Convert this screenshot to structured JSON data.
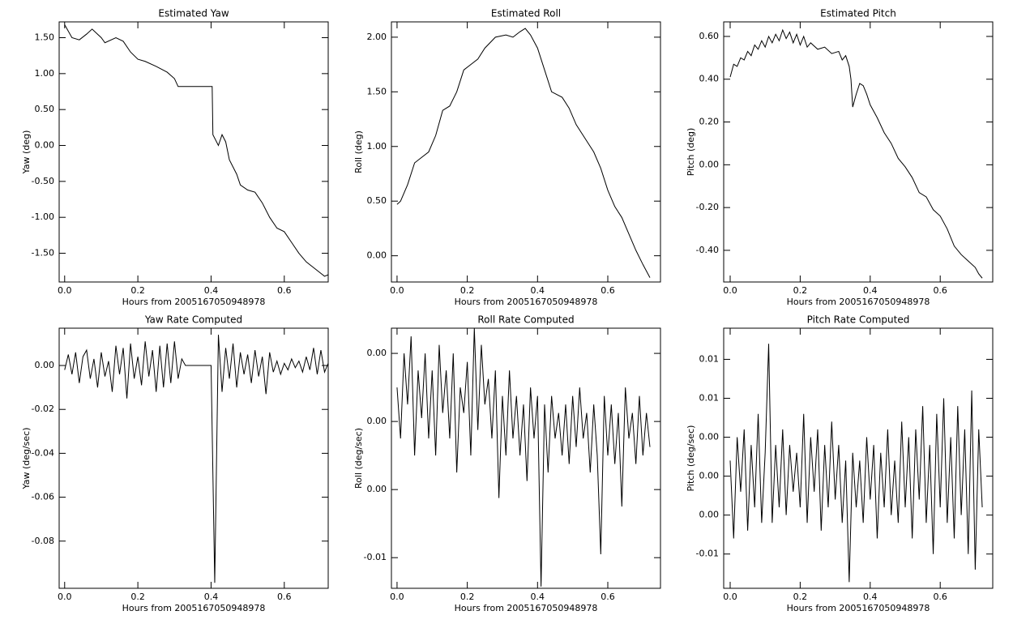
{
  "chart_data": [
    {
      "type": "line",
      "title": "Estimated Yaw",
      "xlabel": "Hours from 2005167050948978",
      "ylabel": "Yaw (deg)",
      "color": "#000000",
      "xlim": [
        -0.015,
        0.72
      ],
      "ylim": [
        -1.9,
        1.72
      ],
      "xticks": [
        {
          "value": 0,
          "label": "0.0"
        },
        0.2,
        0.4,
        0.6
      ],
      "yticks": [
        {
          "value": 1.5,
          "label": "1.50"
        },
        {
          "value": 1,
          "label": "1.00"
        },
        {
          "value": 0.5,
          "label": "0.50"
        },
        {
          "value": 0,
          "label": "0.00"
        },
        {
          "value": -0.5,
          "label": "-0.50"
        },
        {
          "value": -1,
          "label": "-1.00"
        },
        {
          "value": -1.5,
          "label": "-1.50"
        }
      ],
      "x": [
        0,
        0.02,
        0.04,
        0.06,
        0.075,
        0.1,
        0.11,
        0.14,
        0.16,
        0.18,
        0.2,
        0.22,
        0.25,
        0.28,
        0.3,
        0.31,
        0.4,
        0.403,
        0.405,
        0.42,
        0.43,
        0.44,
        0.45,
        0.47,
        0.48,
        0.5,
        0.52,
        0.54,
        0.56,
        0.58,
        0.6,
        0.62,
        0.64,
        0.66,
        0.68,
        0.7,
        0.71,
        0.72
      ],
      "values": [
        1.68,
        1.5,
        1.47,
        1.55,
        1.62,
        1.5,
        1.43,
        1.5,
        1.45,
        1.3,
        1.2,
        1.17,
        1.1,
        1.02,
        0.93,
        0.82,
        0.82,
        0.82,
        0.15,
        0.0,
        0.15,
        0.05,
        -0.2,
        -0.4,
        -0.55,
        -0.62,
        -0.65,
        -0.8,
        -1.0,
        -1.15,
        -1.2,
        -1.35,
        -1.5,
        -1.62,
        -1.7,
        -1.78,
        -1.82,
        -1.8
      ]
    },
    {
      "type": "line",
      "title": "Estimated Roll",
      "xlabel": "Hours from 2005167050948978",
      "ylabel": "Roll (deg)",
      "color": "#000000",
      "xlim": [
        -0.016,
        0.75
      ],
      "ylim": [
        -0.24,
        2.14
      ],
      "xticks": [
        {
          "value": 0,
          "label": "0.0"
        },
        0.2,
        0.4,
        0.6
      ],
      "yticks": [
        {
          "value": 0,
          "label": "0.00"
        },
        {
          "value": 0.5,
          "label": "0.50"
        },
        {
          "value": 1,
          "label": "1.00"
        },
        {
          "value": 1.5,
          "label": "1.50"
        },
        {
          "value": 2,
          "label": "2.00"
        }
      ],
      "x": [
        0,
        0.01,
        0.03,
        0.05,
        0.07,
        0.09,
        0.11,
        0.13,
        0.15,
        0.17,
        0.19,
        0.21,
        0.23,
        0.25,
        0.28,
        0.31,
        0.33,
        0.35,
        0.365,
        0.38,
        0.4,
        0.42,
        0.44,
        0.47,
        0.49,
        0.51,
        0.54,
        0.56,
        0.58,
        0.6,
        0.62,
        0.64,
        0.66,
        0.68,
        0.7,
        0.72
      ],
      "values": [
        0.47,
        0.5,
        0.65,
        0.85,
        0.9,
        0.95,
        1.1,
        1.33,
        1.37,
        1.5,
        1.7,
        1.75,
        1.8,
        1.9,
        2.0,
        2.02,
        2.0,
        2.05,
        2.08,
        2.02,
        1.9,
        1.7,
        1.5,
        1.45,
        1.35,
        1.2,
        1.05,
        0.95,
        0.8,
        0.6,
        0.45,
        0.35,
        0.2,
        0.05,
        -0.08,
        -0.2
      ]
    },
    {
      "type": "line",
      "title": "Estimated Pitch",
      "xlabel": "Hours from 2005167050948978",
      "ylabel": "Pitch (deg)",
      "color": "#000000",
      "xlim": [
        -0.0185,
        0.75
      ],
      "ylim": [
        -0.548,
        0.668
      ],
      "xticks": [
        {
          "value": 0,
          "label": "0.0"
        },
        0.2,
        0.4,
        0.6
      ],
      "yticks": [
        {
          "value": -0.4,
          "label": "-0.40"
        },
        {
          "value": -0.2,
          "label": "-0.20"
        },
        {
          "value": 0,
          "label": "0.00"
        },
        {
          "value": 0.2,
          "label": "0.20"
        },
        {
          "value": 0.4,
          "label": "0.40"
        },
        {
          "value": 0.6,
          "label": "0.60"
        }
      ],
      "x": [
        0,
        0.01,
        0.02,
        0.03,
        0.04,
        0.05,
        0.06,
        0.07,
        0.08,
        0.09,
        0.1,
        0.11,
        0.12,
        0.13,
        0.14,
        0.15,
        0.16,
        0.17,
        0.18,
        0.19,
        0.2,
        0.21,
        0.22,
        0.23,
        0.25,
        0.27,
        0.29,
        0.31,
        0.32,
        0.33,
        0.34,
        0.345,
        0.35,
        0.36,
        0.37,
        0.38,
        0.39,
        0.4,
        0.42,
        0.44,
        0.46,
        0.48,
        0.5,
        0.52,
        0.54,
        0.56,
        0.58,
        0.6,
        0.62,
        0.64,
        0.66,
        0.68,
        0.7,
        0.71,
        0.72
      ],
      "values": [
        0.41,
        0.47,
        0.46,
        0.5,
        0.49,
        0.53,
        0.51,
        0.56,
        0.54,
        0.58,
        0.55,
        0.6,
        0.57,
        0.61,
        0.58,
        0.63,
        0.59,
        0.62,
        0.57,
        0.61,
        0.56,
        0.6,
        0.55,
        0.57,
        0.54,
        0.55,
        0.52,
        0.53,
        0.49,
        0.51,
        0.46,
        0.4,
        0.27,
        0.33,
        0.38,
        0.37,
        0.33,
        0.28,
        0.22,
        0.15,
        0.1,
        0.03,
        -0.01,
        -0.06,
        -0.13,
        -0.15,
        -0.21,
        -0.24,
        -0.3,
        -0.38,
        -0.42,
        -0.45,
        -0.48,
        -0.51,
        -0.53
      ]
    },
    {
      "type": "line",
      "title": "Yaw Rate Computed",
      "xlabel": "Hours from 2005167050948978",
      "ylabel": "Yaw (deg/sec)",
      "color": "#000000",
      "xlim": [
        -0.015,
        0.72
      ],
      "ylim": [
        -0.1015,
        0.017
      ],
      "xticks": [
        {
          "value": 0,
          "label": "0.0"
        },
        0.2,
        0.4,
        0.6
      ],
      "yticks": [
        {
          "value": 0,
          "label": "0.00"
        },
        {
          "value": -0.02,
          "label": "-0.02"
        },
        {
          "value": -0.04,
          "label": "-0.04"
        },
        {
          "value": -0.06,
          "label": "-0.06"
        },
        {
          "value": -0.08,
          "label": "-0.08"
        }
      ],
      "x": [
        0,
        0.01,
        0.02,
        0.03,
        0.04,
        0.05,
        0.06,
        0.07,
        0.08,
        0.09,
        0.1,
        0.11,
        0.12,
        0.13,
        0.14,
        0.15,
        0.16,
        0.17,
        0.18,
        0.19,
        0.2,
        0.21,
        0.22,
        0.23,
        0.24,
        0.25,
        0.26,
        0.27,
        0.28,
        0.29,
        0.3,
        0.31,
        0.32,
        0.33,
        0.34,
        0.35,
        0.36,
        0.37,
        0.38,
        0.39,
        0.4,
        0.41,
        0.42,
        0.43,
        0.44,
        0.45,
        0.46,
        0.47,
        0.48,
        0.49,
        0.5,
        0.51,
        0.52,
        0.53,
        0.54,
        0.55,
        0.56,
        0.57,
        0.58,
        0.59,
        0.6,
        0.61,
        0.62,
        0.63,
        0.64,
        0.65,
        0.66,
        0.67,
        0.68,
        0.69,
        0.7,
        0.71,
        0.72
      ],
      "values": [
        -0.002,
        0.005,
        -0.004,
        0.006,
        -0.008,
        0.004,
        0.007,
        -0.006,
        0.003,
        -0.01,
        0.006,
        -0.005,
        0.002,
        -0.012,
        0.009,
        -0.004,
        0.008,
        -0.015,
        0.01,
        -0.006,
        0.004,
        -0.009,
        0.011,
        -0.005,
        0.007,
        -0.012,
        0.009,
        -0.01,
        0.01,
        -0.008,
        0.011,
        -0.006,
        0.003,
        0,
        0,
        0,
        0,
        0,
        0,
        0,
        0,
        -0.099,
        0.014,
        -0.012,
        0.008,
        -0.006,
        0.01,
        -0.01,
        0.006,
        -0.004,
        0.005,
        -0.008,
        0.007,
        -0.005,
        0.004,
        -0.013,
        0.006,
        -0.003,
        0.002,
        -0.004,
        0.001,
        -0.002,
        0.003,
        -0.001,
        0.002,
        -0.003,
        0.004,
        -0.002,
        0.008,
        -0.004,
        0.007,
        -0.003,
        0.001
      ]
    },
    {
      "type": "line",
      "title": "Roll Rate Computed",
      "xlabel": "Hours from 2005167050948978",
      "ylabel": "Roll (deg/sec)",
      "color": "#000000",
      "xlim": [
        -0.016,
        0.75
      ],
      "ylim": [
        -0.0098,
        0.00548
      ],
      "xticks": [
        {
          "value": 0,
          "label": "0.0"
        },
        0.2,
        0.4,
        0.6
      ],
      "yticks": [
        {
          "value": 0.004,
          "label": "0.00"
        },
        {
          "value": 0,
          "label": "0.00"
        },
        {
          "value": -0.004,
          "label": "0.00"
        },
        {
          "value": -0.008,
          "label": "-0.01"
        }
      ],
      "x": [
        0,
        0.01,
        0.02,
        0.03,
        0.04,
        0.05,
        0.06,
        0.07,
        0.08,
        0.09,
        0.1,
        0.11,
        0.12,
        0.13,
        0.14,
        0.15,
        0.16,
        0.17,
        0.18,
        0.19,
        0.2,
        0.21,
        0.22,
        0.23,
        0.24,
        0.25,
        0.26,
        0.27,
        0.28,
        0.29,
        0.3,
        0.31,
        0.32,
        0.33,
        0.34,
        0.35,
        0.36,
        0.37,
        0.38,
        0.39,
        0.4,
        0.41,
        0.42,
        0.43,
        0.44,
        0.45,
        0.46,
        0.47,
        0.48,
        0.49,
        0.5,
        0.51,
        0.52,
        0.53,
        0.54,
        0.55,
        0.56,
        0.57,
        0.58,
        0.59,
        0.6,
        0.61,
        0.62,
        0.63,
        0.64,
        0.65,
        0.66,
        0.67,
        0.68,
        0.69,
        0.7,
        0.71,
        0.72
      ],
      "values": [
        0.002,
        -0.001,
        0.004,
        0.001,
        0.005,
        -0.002,
        0.003,
        0.0002,
        0.004,
        -0.001,
        0.003,
        -0.002,
        0.0045,
        0.0005,
        0.003,
        -0.001,
        0.004,
        -0.003,
        0.002,
        0.0005,
        0.0035,
        -0.002,
        0.0055,
        -0.0005,
        0.0045,
        0.001,
        0.0025,
        -0.001,
        0.003,
        -0.0045,
        0.0015,
        -0.002,
        0.003,
        -0.001,
        0.0015,
        -0.002,
        0.001,
        -0.0035,
        0.002,
        -0.001,
        0.0015,
        -0.0097,
        0.001,
        -0.003,
        0.0015,
        -0.001,
        0.0005,
        -0.002,
        0.001,
        -0.0025,
        0.0015,
        -0.0015,
        0.002,
        -0.001,
        0.0005,
        -0.003,
        0.001,
        -0.002,
        -0.0078,
        0.0015,
        -0.002,
        0.001,
        -0.0025,
        0.0005,
        -0.005,
        0.002,
        -0.001,
        0.0005,
        -0.0025,
        0.0015,
        -0.002,
        0.0005,
        -0.0015
      ]
    },
    {
      "type": "line",
      "title": "Pitch Rate Computed",
      "xlabel": "Hours from 2005167050948978",
      "ylabel": "Pitch (deg/sec)",
      "color": "#000000",
      "xlim": [
        -0.0185,
        0.75
      ],
      "ylim": [
        -0.0072,
        0.0095
      ],
      "xticks": [
        {
          "value": 0,
          "label": "0.0"
        },
        0.2,
        0.4,
        0.6
      ],
      "yticks": [
        {
          "value": 0.0075,
          "label": "0.01"
        },
        {
          "value": 0.005,
          "label": "0.01"
        },
        {
          "value": 0.0025,
          "label": "0.00"
        },
        {
          "value": 0,
          "label": "0.00"
        },
        {
          "value": -0.0025,
          "label": "0.00"
        },
        {
          "value": -0.005,
          "label": "-0.01"
        }
      ],
      "x": [
        0,
        0.01,
        0.02,
        0.03,
        0.04,
        0.05,
        0.06,
        0.07,
        0.08,
        0.09,
        0.1,
        0.11,
        0.12,
        0.13,
        0.14,
        0.15,
        0.16,
        0.17,
        0.18,
        0.19,
        0.2,
        0.21,
        0.22,
        0.23,
        0.24,
        0.25,
        0.26,
        0.27,
        0.28,
        0.29,
        0.3,
        0.31,
        0.32,
        0.33,
        0.34,
        0.35,
        0.36,
        0.37,
        0.38,
        0.39,
        0.4,
        0.41,
        0.42,
        0.43,
        0.44,
        0.45,
        0.46,
        0.47,
        0.48,
        0.49,
        0.5,
        0.51,
        0.52,
        0.53,
        0.54,
        0.55,
        0.56,
        0.57,
        0.58,
        0.59,
        0.6,
        0.61,
        0.62,
        0.63,
        0.64,
        0.65,
        0.66,
        0.67,
        0.68,
        0.69,
        0.7,
        0.71,
        0.72
      ],
      "values": [
        0.001,
        -0.004,
        0.0025,
        -0.001,
        0.003,
        -0.0035,
        0.002,
        -0.002,
        0.004,
        -0.003,
        0.0015,
        0.0085,
        -0.003,
        0.002,
        -0.002,
        0.003,
        -0.0025,
        0.002,
        -0.001,
        0.0015,
        -0.002,
        0.004,
        -0.003,
        0.0025,
        -0.001,
        0.003,
        -0.0035,
        0.002,
        -0.002,
        0.0035,
        -0.0015,
        0.002,
        -0.003,
        0.001,
        -0.0068,
        0.0015,
        -0.002,
        0.001,
        -0.003,
        0.0025,
        -0.0015,
        0.002,
        -0.004,
        0.0015,
        -0.002,
        0.003,
        -0.0025,
        0.001,
        -0.003,
        0.0035,
        -0.002,
        0.0025,
        -0.004,
        0.003,
        -0.0015,
        0.0045,
        -0.003,
        0.002,
        -0.005,
        0.004,
        -0.002,
        0.005,
        -0.003,
        0.0025,
        -0.004,
        0.0045,
        -0.0025,
        0.003,
        -0.005,
        0.0055,
        -0.006,
        0.003,
        -0.002
      ]
    }
  ]
}
